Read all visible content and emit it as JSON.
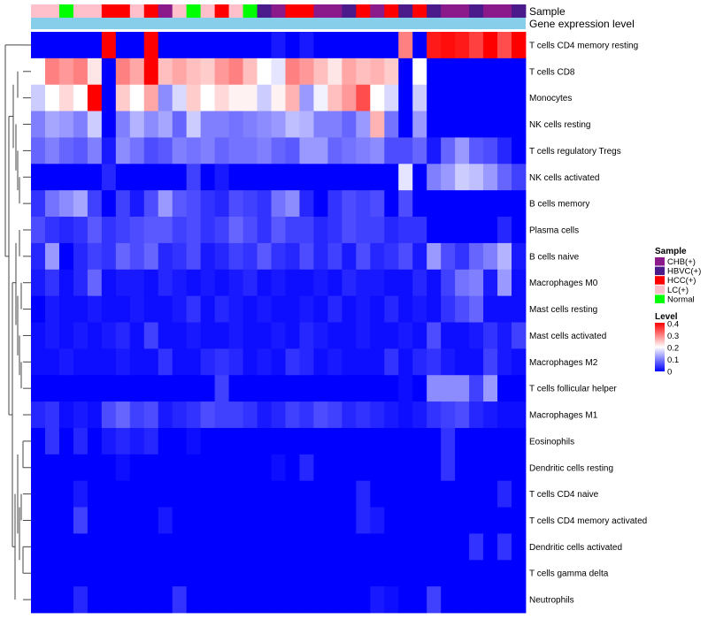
{
  "chart_data": {
    "type": "heatmap",
    "title": "",
    "annotation_tracks": [
      "Sample",
      "Gene expression level"
    ],
    "sample_annotation": [
      "LC(+)",
      "LC(+)",
      "Normal",
      "LC(+)",
      "LC(+)",
      "HCC(+)",
      "HCC(+)",
      "LC(+)",
      "HCC(+)",
      "CHB(+)",
      "LC(+)",
      "Normal",
      "LC(+)",
      "HCC(+)",
      "LC(+)",
      "Normal",
      "HBVC(+)",
      "CHB(+)",
      "HCC(+)",
      "HCC(+)",
      "CHB(+)",
      "CHB(+)",
      "HBVC(+)",
      "HCC(+)",
      "CHB(+)",
      "HCC(+)",
      "HBVC(+)",
      "HCC(+)",
      "HBVC(+)",
      "CHB(+)",
      "CHB(+)",
      "HBVC(+)",
      "CHB(+)",
      "CHB(+)",
      "HBVC(+)"
    ],
    "gene_expression_level": "uniform",
    "cell_types": [
      "T cells CD4 memory resting",
      "T cells CD8",
      "Monocytes",
      "NK cells resting",
      "T cells regulatory  Tregs",
      "NK cells activated",
      "B cells memory",
      "Plasma cells",
      "B cells naive",
      "Macrophages M0",
      "Mast cells resting",
      "Mast cells activated",
      "Macrophages M2",
      "T cells follicular helper",
      "Macrophages M1",
      "Eosinophils",
      "Dendritic cells resting",
      "T cells CD4 naive",
      "T cells CD4 memory activated",
      "Dendritic cells activated",
      "T cells gamma delta",
      "Neutrophils"
    ],
    "values": [
      [
        0,
        0,
        0,
        0,
        0,
        0.4,
        0,
        0,
        0.4,
        0,
        0,
        0,
        0,
        0,
        0,
        0,
        0,
        0.02,
        0,
        0.02,
        0,
        0,
        0,
        0,
        0,
        0,
        0.3,
        0,
        0.38,
        0.39,
        0.38,
        0.35,
        0.4,
        0.34,
        0.4
      ],
      [
        0.2,
        0.3,
        0.28,
        0.3,
        0.22,
        0,
        0.3,
        0.27,
        0.4,
        0.25,
        0.27,
        0.25,
        0.24,
        0.28,
        0.3,
        0.25,
        0.2,
        0.18,
        0.3,
        0.28,
        0.25,
        0.22,
        0.27,
        0.25,
        0.26,
        0.24,
        0,
        0.2,
        0,
        0,
        0,
        0,
        0,
        0,
        0
      ],
      [
        0.16,
        0.2,
        0.23,
        0.2,
        0.4,
        0,
        0.24,
        0.2,
        0.27,
        0.11,
        0.17,
        0.24,
        0.2,
        0.23,
        0.21,
        0.21,
        0.16,
        0.21,
        0.26,
        0.12,
        0.19,
        0.25,
        0.28,
        0.34,
        0.2,
        0.17,
        0,
        0.16,
        0,
        0,
        0,
        0,
        0,
        0,
        0
      ],
      [
        0.1,
        0.13,
        0.12,
        0.1,
        0.16,
        0,
        0.1,
        0.14,
        0.11,
        0.13,
        0.08,
        0.16,
        0.1,
        0.1,
        0.09,
        0.1,
        0.11,
        0.12,
        0.15,
        0.14,
        0.1,
        0.1,
        0.08,
        0.12,
        0.26,
        0.09,
        0,
        0.12,
        0,
        0,
        0,
        0,
        0,
        0,
        0
      ],
      [
        0.08,
        0.1,
        0.08,
        0.07,
        0.1,
        0.02,
        0.11,
        0.09,
        0.06,
        0.07,
        0.1,
        0.09,
        0.1,
        0.08,
        0.09,
        0.09,
        0.1,
        0.08,
        0.07,
        0.12,
        0.12,
        0.08,
        0.09,
        0.1,
        0.11,
        0.06,
        0.06,
        0.08,
        0.02,
        0.08,
        0.12,
        0.07,
        0.06,
        0.03,
        0
      ],
      [
        0,
        0,
        0,
        0,
        0,
        0.03,
        0,
        0,
        0,
        0,
        0,
        0.05,
        0,
        0.02,
        0,
        0,
        0,
        0,
        0,
        0,
        0,
        0,
        0,
        0,
        0,
        0,
        0.18,
        0,
        0.1,
        0.12,
        0.16,
        0.15,
        0.12,
        0.08,
        0.05
      ],
      [
        0.04,
        0.09,
        0.11,
        0.13,
        0.05,
        0,
        0.05,
        0.02,
        0.06,
        0.12,
        0.07,
        0.06,
        0.04,
        0.03,
        0.06,
        0.05,
        0.04,
        0.09,
        0.11,
        0.03,
        0,
        0.04,
        0.06,
        0.05,
        0.06,
        0,
        0.06,
        0,
        0,
        0,
        0,
        0,
        0,
        0,
        0
      ],
      [
        0.06,
        0.04,
        0.03,
        0.04,
        0.07,
        0.04,
        0.05,
        0.06,
        0.07,
        0.07,
        0.05,
        0.06,
        0.04,
        0.05,
        0.08,
        0.06,
        0.04,
        0.07,
        0.05,
        0.05,
        0.03,
        0.04,
        0.06,
        0.05,
        0.05,
        0.03,
        0.04,
        0.04,
        0,
        0,
        0,
        0,
        0,
        0.03,
        0
      ],
      [
        0.03,
        0.12,
        0,
        0.03,
        0.05,
        0.04,
        0.08,
        0.06,
        0.08,
        0.03,
        0.04,
        0.06,
        0.02,
        0.03,
        0.05,
        0.04,
        0.07,
        0.04,
        0.03,
        0.06,
        0.03,
        0.05,
        0.02,
        0.06,
        0.03,
        0.04,
        0.06,
        0.02,
        0.12,
        0.06,
        0.04,
        0.08,
        0.1,
        0.14,
        0.02
      ],
      [
        0.02,
        0.04,
        0.01,
        0.03,
        0.08,
        0.01,
        0.02,
        0.02,
        0.01,
        0.03,
        0.02,
        0.01,
        0.02,
        0.01,
        0.02,
        0.03,
        0.01,
        0.02,
        0.01,
        0.01,
        0.02,
        0.01,
        0.03,
        0.02,
        0.02,
        0.01,
        0.01,
        0.03,
        0.01,
        0.05,
        0.09,
        0.1,
        0.02,
        0.12,
        0.01
      ],
      [
        0,
        0.02,
        0.01,
        0.01,
        0.02,
        0.01,
        0.01,
        0.02,
        0.01,
        0.01,
        0.02,
        0.04,
        0.01,
        0.03,
        0.02,
        0.01,
        0.02,
        0.01,
        0.01,
        0.02,
        0.01,
        0.03,
        0.01,
        0.02,
        0.01,
        0.03,
        0.01,
        0.02,
        0.01,
        0.04,
        0.06,
        0.08,
        0.01,
        0.01,
        0.01
      ],
      [
        0.01,
        0.02,
        0.01,
        0.02,
        0.01,
        0.02,
        0.03,
        0.01,
        0.05,
        0.01,
        0.01,
        0.02,
        0.01,
        0.01,
        0.02,
        0.01,
        0.01,
        0.02,
        0.01,
        0.03,
        0.02,
        0.01,
        0.01,
        0.02,
        0.01,
        0.01,
        0.02,
        0.01,
        0.06,
        0.01,
        0.01,
        0.02,
        0.04,
        0.02,
        0.05
      ],
      [
        0.01,
        0.01,
        0.02,
        0.01,
        0.01,
        0.01,
        0.02,
        0.01,
        0.01,
        0.04,
        0.01,
        0.01,
        0.03,
        0.04,
        0.03,
        0.01,
        0.02,
        0.01,
        0.04,
        0.03,
        0.01,
        0.02,
        0.01,
        0.01,
        0.01,
        0.04,
        0.01,
        0.03,
        0.04,
        0.02,
        0.01,
        0.01,
        0.05,
        0.02,
        0.01
      ],
      [
        0,
        0,
        0,
        0,
        0,
        0,
        0,
        0,
        0,
        0,
        0,
        0,
        0,
        0.05,
        0,
        0,
        0,
        0,
        0,
        0,
        0,
        0,
        0,
        0,
        0,
        0,
        0.01,
        0,
        0.11,
        0.11,
        0.11,
        0.05,
        0.12,
        0,
        0
      ],
      [
        0.03,
        0.04,
        0.01,
        0.02,
        0.01,
        0.06,
        0.08,
        0.05,
        0.06,
        0.02,
        0.03,
        0.04,
        0.06,
        0.05,
        0.05,
        0.04,
        0.02,
        0.03,
        0.05,
        0.04,
        0.06,
        0.05,
        0.03,
        0.04,
        0.03,
        0.02,
        0.01,
        0.02,
        0.04,
        0.05,
        0.06,
        0.03,
        0.02,
        0.01,
        0.01
      ],
      [
        0,
        0.04,
        0,
        0.03,
        0,
        0.02,
        0.03,
        0.02,
        0.03,
        0,
        0,
        0.01,
        0,
        0,
        0,
        0,
        0,
        0,
        0,
        0,
        0,
        0,
        0,
        0,
        0,
        0,
        0,
        0,
        0,
        0.04,
        0,
        0,
        0,
        0,
        0
      ],
      [
        0,
        0,
        0,
        0,
        0,
        0,
        0.01,
        0,
        0,
        0,
        0,
        0,
        0,
        0,
        0,
        0,
        0,
        0.01,
        0,
        0.03,
        0,
        0,
        0,
        0,
        0,
        0,
        0,
        0,
        0,
        0.04,
        0,
        0,
        0,
        0,
        0
      ],
      [
        0,
        0,
        0,
        0.02,
        0,
        0,
        0,
        0,
        0,
        0,
        0,
        0,
        0,
        0,
        0,
        0,
        0,
        0,
        0,
        0,
        0,
        0,
        0,
        0.03,
        0,
        0,
        0,
        0,
        0,
        0,
        0,
        0,
        0,
        0.03,
        0
      ],
      [
        0,
        0,
        0,
        0.05,
        0,
        0,
        0,
        0,
        0,
        0.02,
        0,
        0,
        0,
        0,
        0,
        0,
        0,
        0,
        0,
        0,
        0,
        0,
        0,
        0.03,
        0.02,
        0,
        0,
        0,
        0,
        0,
        0,
        0,
        0,
        0,
        0
      ],
      [
        0,
        0,
        0,
        0,
        0,
        0,
        0,
        0,
        0,
        0,
        0,
        0,
        0,
        0,
        0,
        0,
        0,
        0,
        0,
        0,
        0,
        0,
        0,
        0,
        0,
        0,
        0,
        0,
        0,
        0,
        0,
        0.04,
        0,
        0.04,
        0
      ],
      [
        0,
        0,
        0,
        0,
        0,
        0,
        0,
        0,
        0,
        0,
        0,
        0,
        0,
        0,
        0,
        0,
        0,
        0,
        0,
        0,
        0,
        0,
        0,
        0,
        0,
        0,
        0,
        0,
        0,
        0,
        0,
        0,
        0,
        0,
        0
      ],
      [
        0,
        0,
        0,
        0.03,
        0,
        0,
        0,
        0,
        0,
        0,
        0.04,
        0,
        0,
        0,
        0,
        0,
        0,
        0,
        0,
        0,
        0,
        0,
        0,
        0,
        0.02,
        0.01,
        0,
        0,
        0.05,
        0,
        0,
        0,
        0,
        0,
        0
      ]
    ],
    "color_scale": {
      "min": 0,
      "max": 0.4,
      "low": "#0000ff",
      "mid": "#ffffff",
      "high": "#ff0000"
    },
    "legends": {
      "sample": {
        "title": "Sample",
        "entries": [
          {
            "label": "CHB(+)",
            "color": "#8b1a8b"
          },
          {
            "label": "HBVC(+)",
            "color": "#4b1a8b"
          },
          {
            "label": "HCC(+)",
            "color": "#ff0000"
          },
          {
            "label": "LC(+)",
            "color": "#ffc0cb"
          },
          {
            "label": "Normal",
            "color": "#00ff00"
          }
        ]
      },
      "level": {
        "title": "Level",
        "ticks": [
          "0.4",
          "0.3",
          "0.2",
          "0.1",
          "0"
        ]
      }
    },
    "track_colors": {
      "gene_expression_level": "#87ceeb"
    }
  }
}
